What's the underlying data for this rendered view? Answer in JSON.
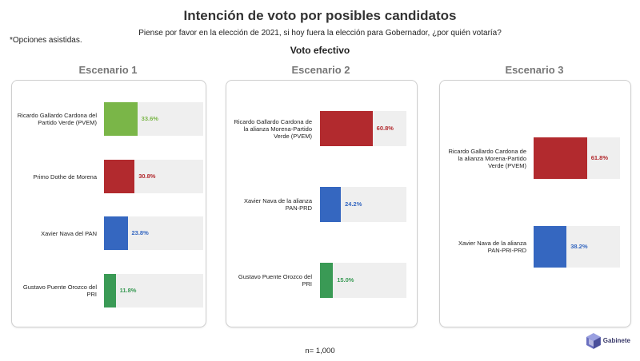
{
  "header": {
    "title": "Intención de voto por posibles candidatos",
    "subtitle": "Piense por favor en la elección de 2021, si hoy fuera la elección para Gobernador, ¿por quién votaría?",
    "note": "*Opciones asistidas.",
    "section": "Voto efectivo"
  },
  "footer": {
    "sample": "n= 1,000"
  },
  "logo": {
    "name": "Gabinete",
    "icon": "cube-logo-icon"
  },
  "colors": {
    "verde": "#7ab648",
    "morena": "#b22a2e",
    "pan": "#3567c0",
    "pri": "#3a9a55",
    "track": "#efefef"
  },
  "chart_data": [
    {
      "type": "bar",
      "title": "Escenario 1",
      "categories": [
        "Ricardo Gallardo Cardona del Partido Verde (PVEM)",
        "Primo Dothe de Morena",
        "Xavier Nava del PAN",
        "Gustavo Puente Orozco del PRI"
      ],
      "values": [
        33.6,
        30.8,
        23.8,
        11.8
      ],
      "labels": [
        "33.6%",
        "30.8%",
        "23.8%",
        "11.8%"
      ],
      "colors": [
        "#7ab648",
        "#b22a2e",
        "#3567c0",
        "#3a9a55"
      ],
      "label_colors": [
        "#7ab648",
        "#b22a2e",
        "#3567c0",
        "#3a9a55"
      ],
      "xlim": [
        0,
        100
      ]
    },
    {
      "type": "bar",
      "title": "Escenario 2",
      "categories": [
        "Ricardo Gallardo Cardona de la alianza Morena-Partido Verde (PVEM)",
        "Xavier Nava de la alianza PAN-PRD",
        "Gustavo Puente Orozco del PRI"
      ],
      "values": [
        60.8,
        24.2,
        15.0
      ],
      "labels": [
        "60.8%",
        "24.2%",
        "15.0%"
      ],
      "colors": [
        "#b22a2e",
        "#3567c0",
        "#3a9a55"
      ],
      "label_colors": [
        "#b22a2e",
        "#3567c0",
        "#3a9a55"
      ],
      "xlim": [
        0,
        100
      ]
    },
    {
      "type": "bar",
      "title": "Escenario 3",
      "categories": [
        "Ricardo Gallardo Cardona de la alianza Morena-Partido Verde (PVEM)",
        "Xavier Nava de la alianza PAN-PRI-PRD"
      ],
      "values": [
        61.8,
        38.2
      ],
      "labels": [
        "61.8%",
        "38.2%"
      ],
      "colors": [
        "#b22a2e",
        "#3567c0"
      ],
      "label_colors": [
        "#b22a2e",
        "#3567c0"
      ],
      "xlim": [
        0,
        100
      ]
    }
  ]
}
